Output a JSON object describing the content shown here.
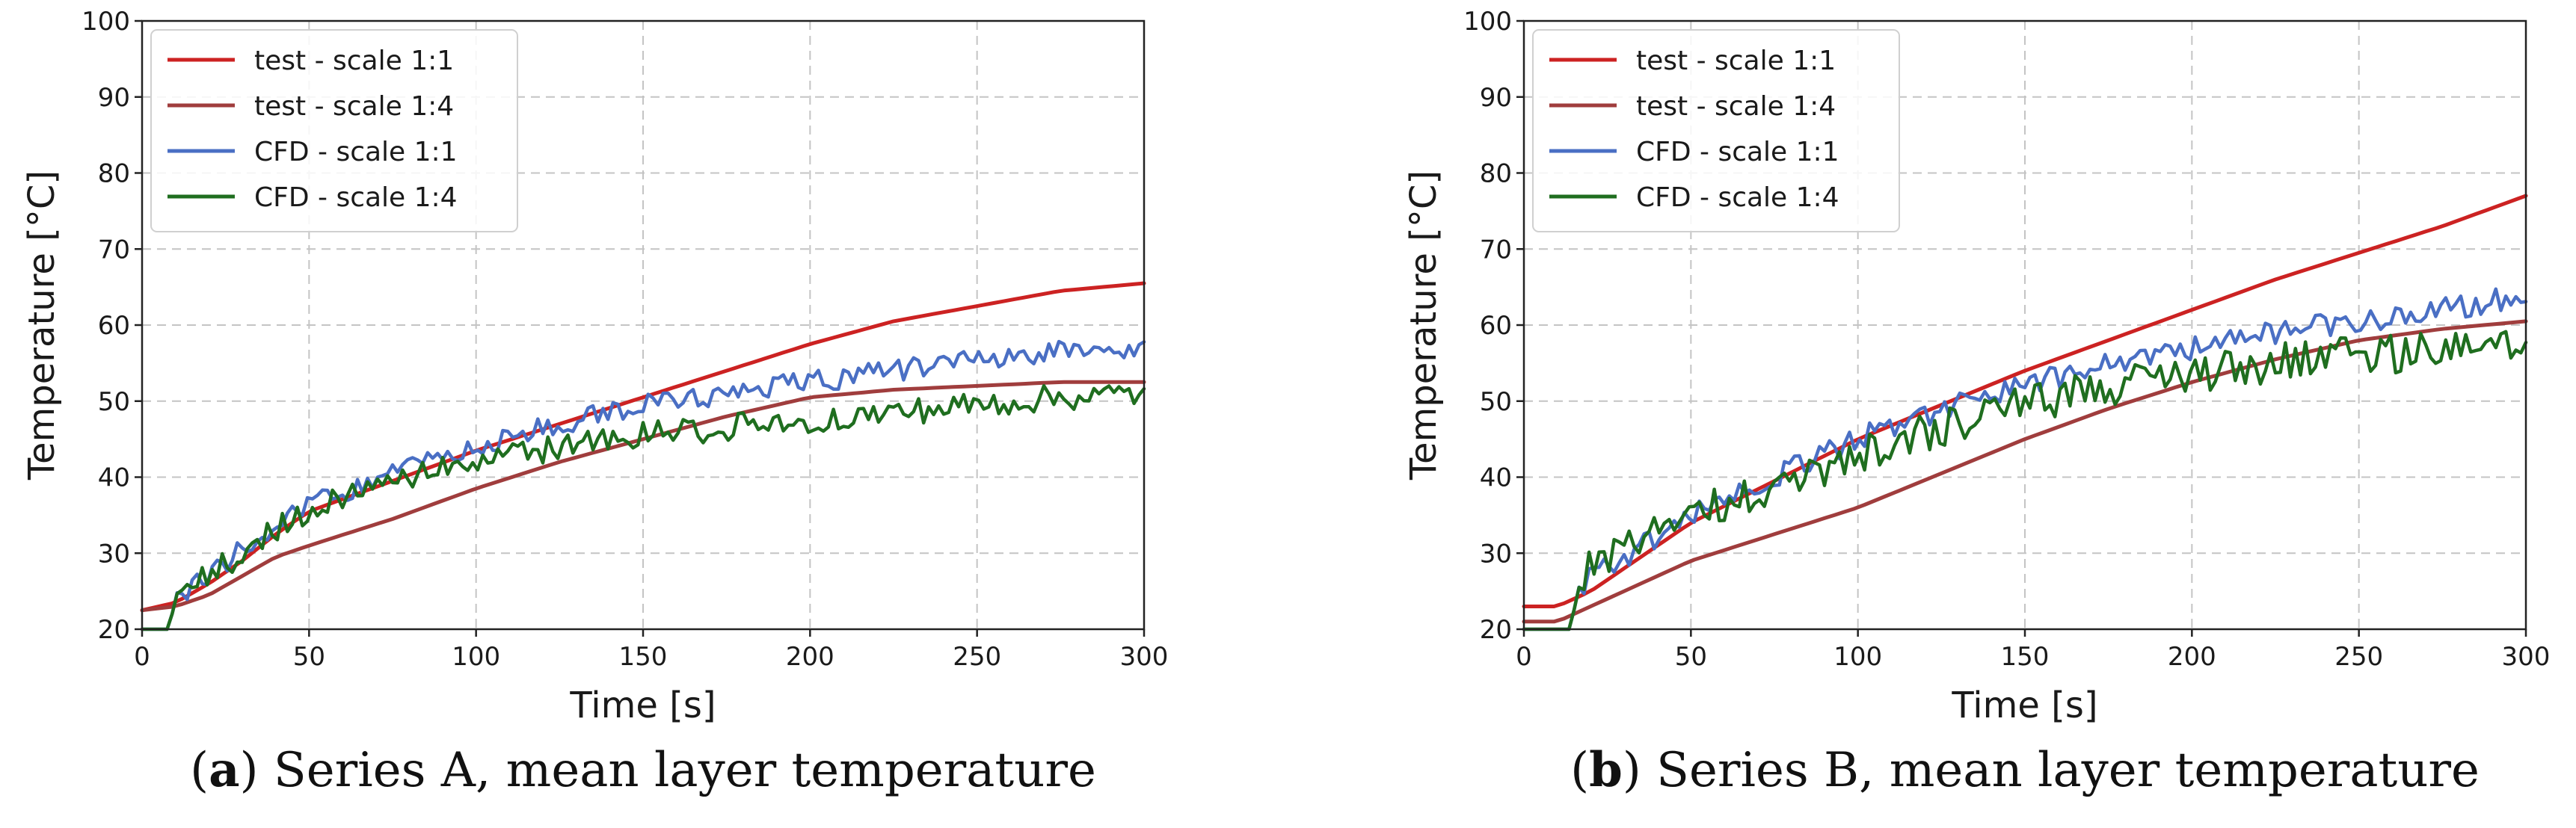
{
  "chart_data": [
    {
      "type": "line",
      "panel_letter": "a",
      "caption": " Series A, mean layer temperature",
      "xlabel": "Time [s]",
      "ylabel": "Temperature [°C]",
      "xlim": [
        0,
        300
      ],
      "ylim": [
        20,
        100
      ],
      "xticks": [
        0,
        50,
        100,
        150,
        200,
        250,
        300
      ],
      "yticks": [
        20,
        30,
        40,
        50,
        60,
        70,
        80,
        90,
        100
      ],
      "grid": true,
      "legend_position": "top-left",
      "series": [
        {
          "name": "test - scale 1:1",
          "color": "#cc2222",
          "noise": 0,
          "points": [
            [
              0,
              22.5
            ],
            [
              10,
              23.5
            ],
            [
              20,
              26
            ],
            [
              30,
              29
            ],
            [
              40,
              32.5
            ],
            [
              50,
              35.5
            ],
            [
              75,
              39.5
            ],
            [
              100,
              43.5
            ],
            [
              125,
              47
            ],
            [
              150,
              50.5
            ],
            [
              175,
              54
            ],
            [
              200,
              57.5
            ],
            [
              225,
              60.5
            ],
            [
              250,
              62.5
            ],
            [
              275,
              64.5
            ],
            [
              300,
              65.5
            ]
          ]
        },
        {
          "name": "test - scale 1:4",
          "color": "#a03d3d",
          "noise": 0,
          "points": [
            [
              0,
              22.5
            ],
            [
              10,
              23
            ],
            [
              20,
              24.5
            ],
            [
              30,
              27
            ],
            [
              40,
              29.5
            ],
            [
              50,
              31
            ],
            [
              75,
              34.5
            ],
            [
              100,
              38.5
            ],
            [
              125,
              42
            ],
            [
              150,
              45
            ],
            [
              175,
              48
            ],
            [
              200,
              50.5
            ],
            [
              225,
              51.5
            ],
            [
              250,
              52
            ],
            [
              275,
              52.5
            ],
            [
              300,
              52.5
            ]
          ]
        },
        {
          "name": "CFD - scale 1:1",
          "color": "#4a6fc4",
          "noise": 0.9,
          "points": [
            [
              0,
              20
            ],
            [
              8,
              20
            ],
            [
              10,
              24
            ],
            [
              20,
              27
            ],
            [
              30,
              30.5
            ],
            [
              40,
              34
            ],
            [
              50,
              36.5
            ],
            [
              75,
              40.5
            ],
            [
              100,
              44
            ],
            [
              125,
              47
            ],
            [
              150,
              49.5
            ],
            [
              175,
              51
            ],
            [
              200,
              52.5
            ],
            [
              225,
              54
            ],
            [
              250,
              55.5
            ],
            [
              275,
              56.5
            ],
            [
              300,
              57
            ]
          ]
        },
        {
          "name": "CFD - scale 1:4",
          "color": "#1f6e1f",
          "noise": 1.1,
          "points": [
            [
              0,
              20
            ],
            [
              8,
              20
            ],
            [
              10,
              24
            ],
            [
              20,
              27
            ],
            [
              30,
              30
            ],
            [
              40,
              33
            ],
            [
              50,
              35.5
            ],
            [
              75,
              39.5
            ],
            [
              100,
              42
            ],
            [
              125,
              44
            ],
            [
              150,
              45.5
            ],
            [
              175,
              46.5
            ],
            [
              200,
              47.5
            ],
            [
              225,
              48.5
            ],
            [
              250,
              49.5
            ],
            [
              275,
              50.5
            ],
            [
              300,
              51
            ]
          ]
        }
      ]
    },
    {
      "type": "line",
      "panel_letter": "b",
      "caption": " Series B, mean layer temperature",
      "xlabel": "Time [s]",
      "ylabel": "Temperature [°C]",
      "xlim": [
        0,
        300
      ],
      "ylim": [
        20,
        100
      ],
      "xticks": [
        0,
        50,
        100,
        150,
        200,
        250,
        300
      ],
      "yticks": [
        20,
        30,
        40,
        50,
        60,
        70,
        80,
        90,
        100
      ],
      "grid": true,
      "legend_position": "top-left",
      "series": [
        {
          "name": "test - scale 1:1",
          "color": "#cc2222",
          "noise": 0,
          "points": [
            [
              0,
              23
            ],
            [
              10,
              23
            ],
            [
              20,
              25
            ],
            [
              30,
              28
            ],
            [
              40,
              31
            ],
            [
              50,
              34
            ],
            [
              75,
              39.5
            ],
            [
              100,
              45
            ],
            [
              125,
              49.5
            ],
            [
              150,
              54
            ],
            [
              175,
              58
            ],
            [
              200,
              62
            ],
            [
              225,
              66
            ],
            [
              250,
              69.5
            ],
            [
              275,
              73
            ],
            [
              300,
              77
            ]
          ]
        },
        {
          "name": "test - scale 1:4",
          "color": "#a03d3d",
          "noise": 0,
          "points": [
            [
              0,
              21
            ],
            [
              10,
              21
            ],
            [
              20,
              23
            ],
            [
              30,
              25
            ],
            [
              40,
              27
            ],
            [
              50,
              29
            ],
            [
              75,
              32.5
            ],
            [
              100,
              36
            ],
            [
              125,
              40.5
            ],
            [
              150,
              45
            ],
            [
              175,
              49
            ],
            [
              200,
              52.5
            ],
            [
              225,
              55.5
            ],
            [
              250,
              58
            ],
            [
              275,
              59.5
            ],
            [
              300,
              60.5
            ]
          ]
        },
        {
          "name": "CFD - scale 1:1",
          "color": "#4a6fc4",
          "noise": 1.0,
          "points": [
            [
              0,
              20
            ],
            [
              14,
              20
            ],
            [
              16,
              25
            ],
            [
              20,
              27.5
            ],
            [
              30,
              29.5
            ],
            [
              40,
              32
            ],
            [
              50,
              35
            ],
            [
              75,
              40
            ],
            [
              100,
              45
            ],
            [
              125,
              49
            ],
            [
              150,
              52
            ],
            [
              175,
              55
            ],
            [
              200,
              57
            ],
            [
              225,
              59
            ],
            [
              250,
              60.5
            ],
            [
              275,
              62
            ],
            [
              300,
              64
            ]
          ]
        },
        {
          "name": "CFD - scale 1:4",
          "color": "#1f6e1f",
          "noise": 1.6,
          "points": [
            [
              0,
              20
            ],
            [
              14,
              20
            ],
            [
              16,
              25
            ],
            [
              20,
              29
            ],
            [
              30,
              31
            ],
            [
              40,
              33
            ],
            [
              50,
              35
            ],
            [
              75,
              39
            ],
            [
              100,
              43
            ],
            [
              125,
              46.5
            ],
            [
              150,
              49.5
            ],
            [
              175,
              52
            ],
            [
              200,
              53.5
            ],
            [
              225,
              55
            ],
            [
              250,
              56
            ],
            [
              275,
              56.5
            ],
            [
              300,
              57
            ]
          ]
        }
      ]
    }
  ]
}
